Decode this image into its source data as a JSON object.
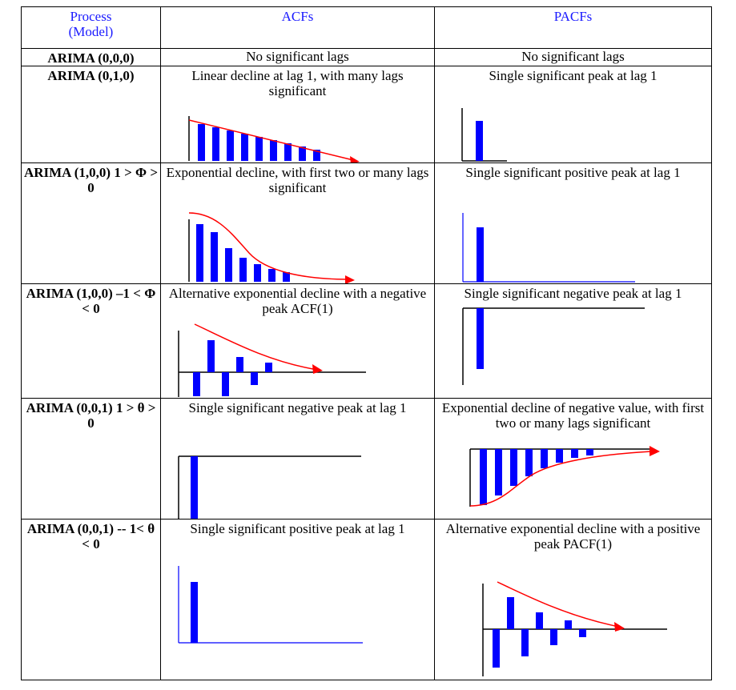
{
  "headers": {
    "process": "Process",
    "process_sub": "(Model)",
    "acf": "ACFs",
    "pacf": "PACFs"
  },
  "rows": [
    {
      "process": "ARIMA (0,0,0)",
      "acf": "No significant lags",
      "pacf": "No significant lags"
    },
    {
      "process": "ARIMA (0,1,0)",
      "acf": "Linear decline at lag 1, with many lags significant",
      "pacf": "Single significant peak at lag 1"
    },
    {
      "process": "ARIMA (1,0,0) 1 > Φ > 0",
      "acf": "Exponential decline, with first two or many lags significant",
      "pacf": "Single significant positive peak at lag 1"
    },
    {
      "process": "ARIMA (1,0,0) –1 < Φ < 0",
      "acf": "Alternative exponential decline with a negative peak ACF(1)",
      "pacf": "Single significant negative peak at lag 1"
    },
    {
      "process": "ARIMA (0,0,1) 1 > θ > 0",
      "acf": "Single significant negative peak at lag 1",
      "pacf": "Exponential decline of negative value, with first two or many lags significant"
    },
    {
      "process": "ARIMA (0,0,1) -- 1< θ < 0",
      "acf": "Single significant positive peak at lag 1",
      "pacf": "Alternative exponential decline with a positive peak PACF(1)"
    }
  ],
  "colors": {
    "bar": "#0000ff",
    "curve": "#ff0000",
    "header_text": "#1a1aff"
  }
}
